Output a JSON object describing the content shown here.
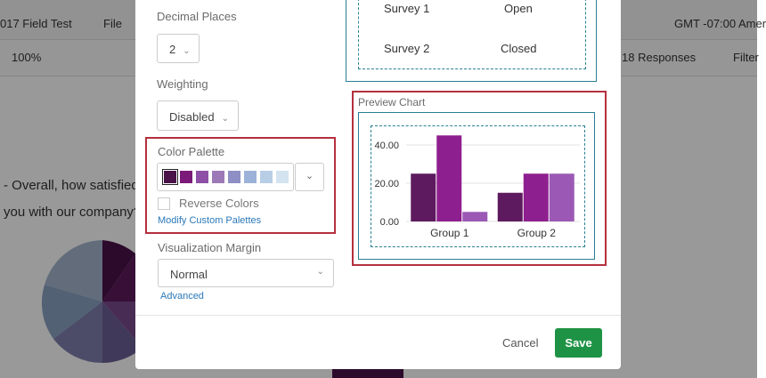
{
  "background": {
    "project": "017 Field Test",
    "file_menu": "File",
    "timezone": "GMT -07:00 Amer",
    "zoom": "100%",
    "responses": "18 Responses",
    "filter": "Filter",
    "question_line1": "- Overall, how satisfied",
    "question_line2": "you with our company?"
  },
  "modal": {
    "decimal_places_label": "Decimal Places",
    "decimal_places_value": "2",
    "weighting_label": "Weighting",
    "weighting_value": "Disabled",
    "color_palette_label": "Color Palette",
    "palette": [
      "#4a1248",
      "#7b1a78",
      "#8e4fa6",
      "#9c7ab8",
      "#8e8fc4",
      "#9db2d8",
      "#b8cde6",
      "#d3e3f0"
    ],
    "reverse_colors": "Reverse Colors",
    "modify_palettes": "Modify Custom Palettes",
    "margin_label": "Visualization Margin",
    "margin_value": "Normal",
    "advanced": "Advanced",
    "surveys": [
      [
        "Survey 1",
        "Open"
      ],
      [
        "Survey 2",
        "Closed"
      ]
    ],
    "cancel": "Cancel",
    "save": "Save"
  },
  "chart_data": {
    "type": "bar",
    "title": "Preview Chart",
    "categories": [
      "Group 1",
      "Group 2"
    ],
    "series": [
      {
        "color": "#5e1a5e",
        "values": [
          25,
          15
        ]
      },
      {
        "color": "#8e1f8e",
        "values": [
          45,
          25
        ]
      },
      {
        "color": "#9b59b5",
        "values": [
          5,
          25
        ]
      }
    ],
    "ylim": [
      0,
      40
    ],
    "yticks": [
      {
        "value": 0,
        "label": "0.00"
      },
      {
        "value": 20,
        "label": "20.00"
      },
      {
        "value": 40,
        "label": "40.00"
      }
    ],
    "grid": true
  }
}
